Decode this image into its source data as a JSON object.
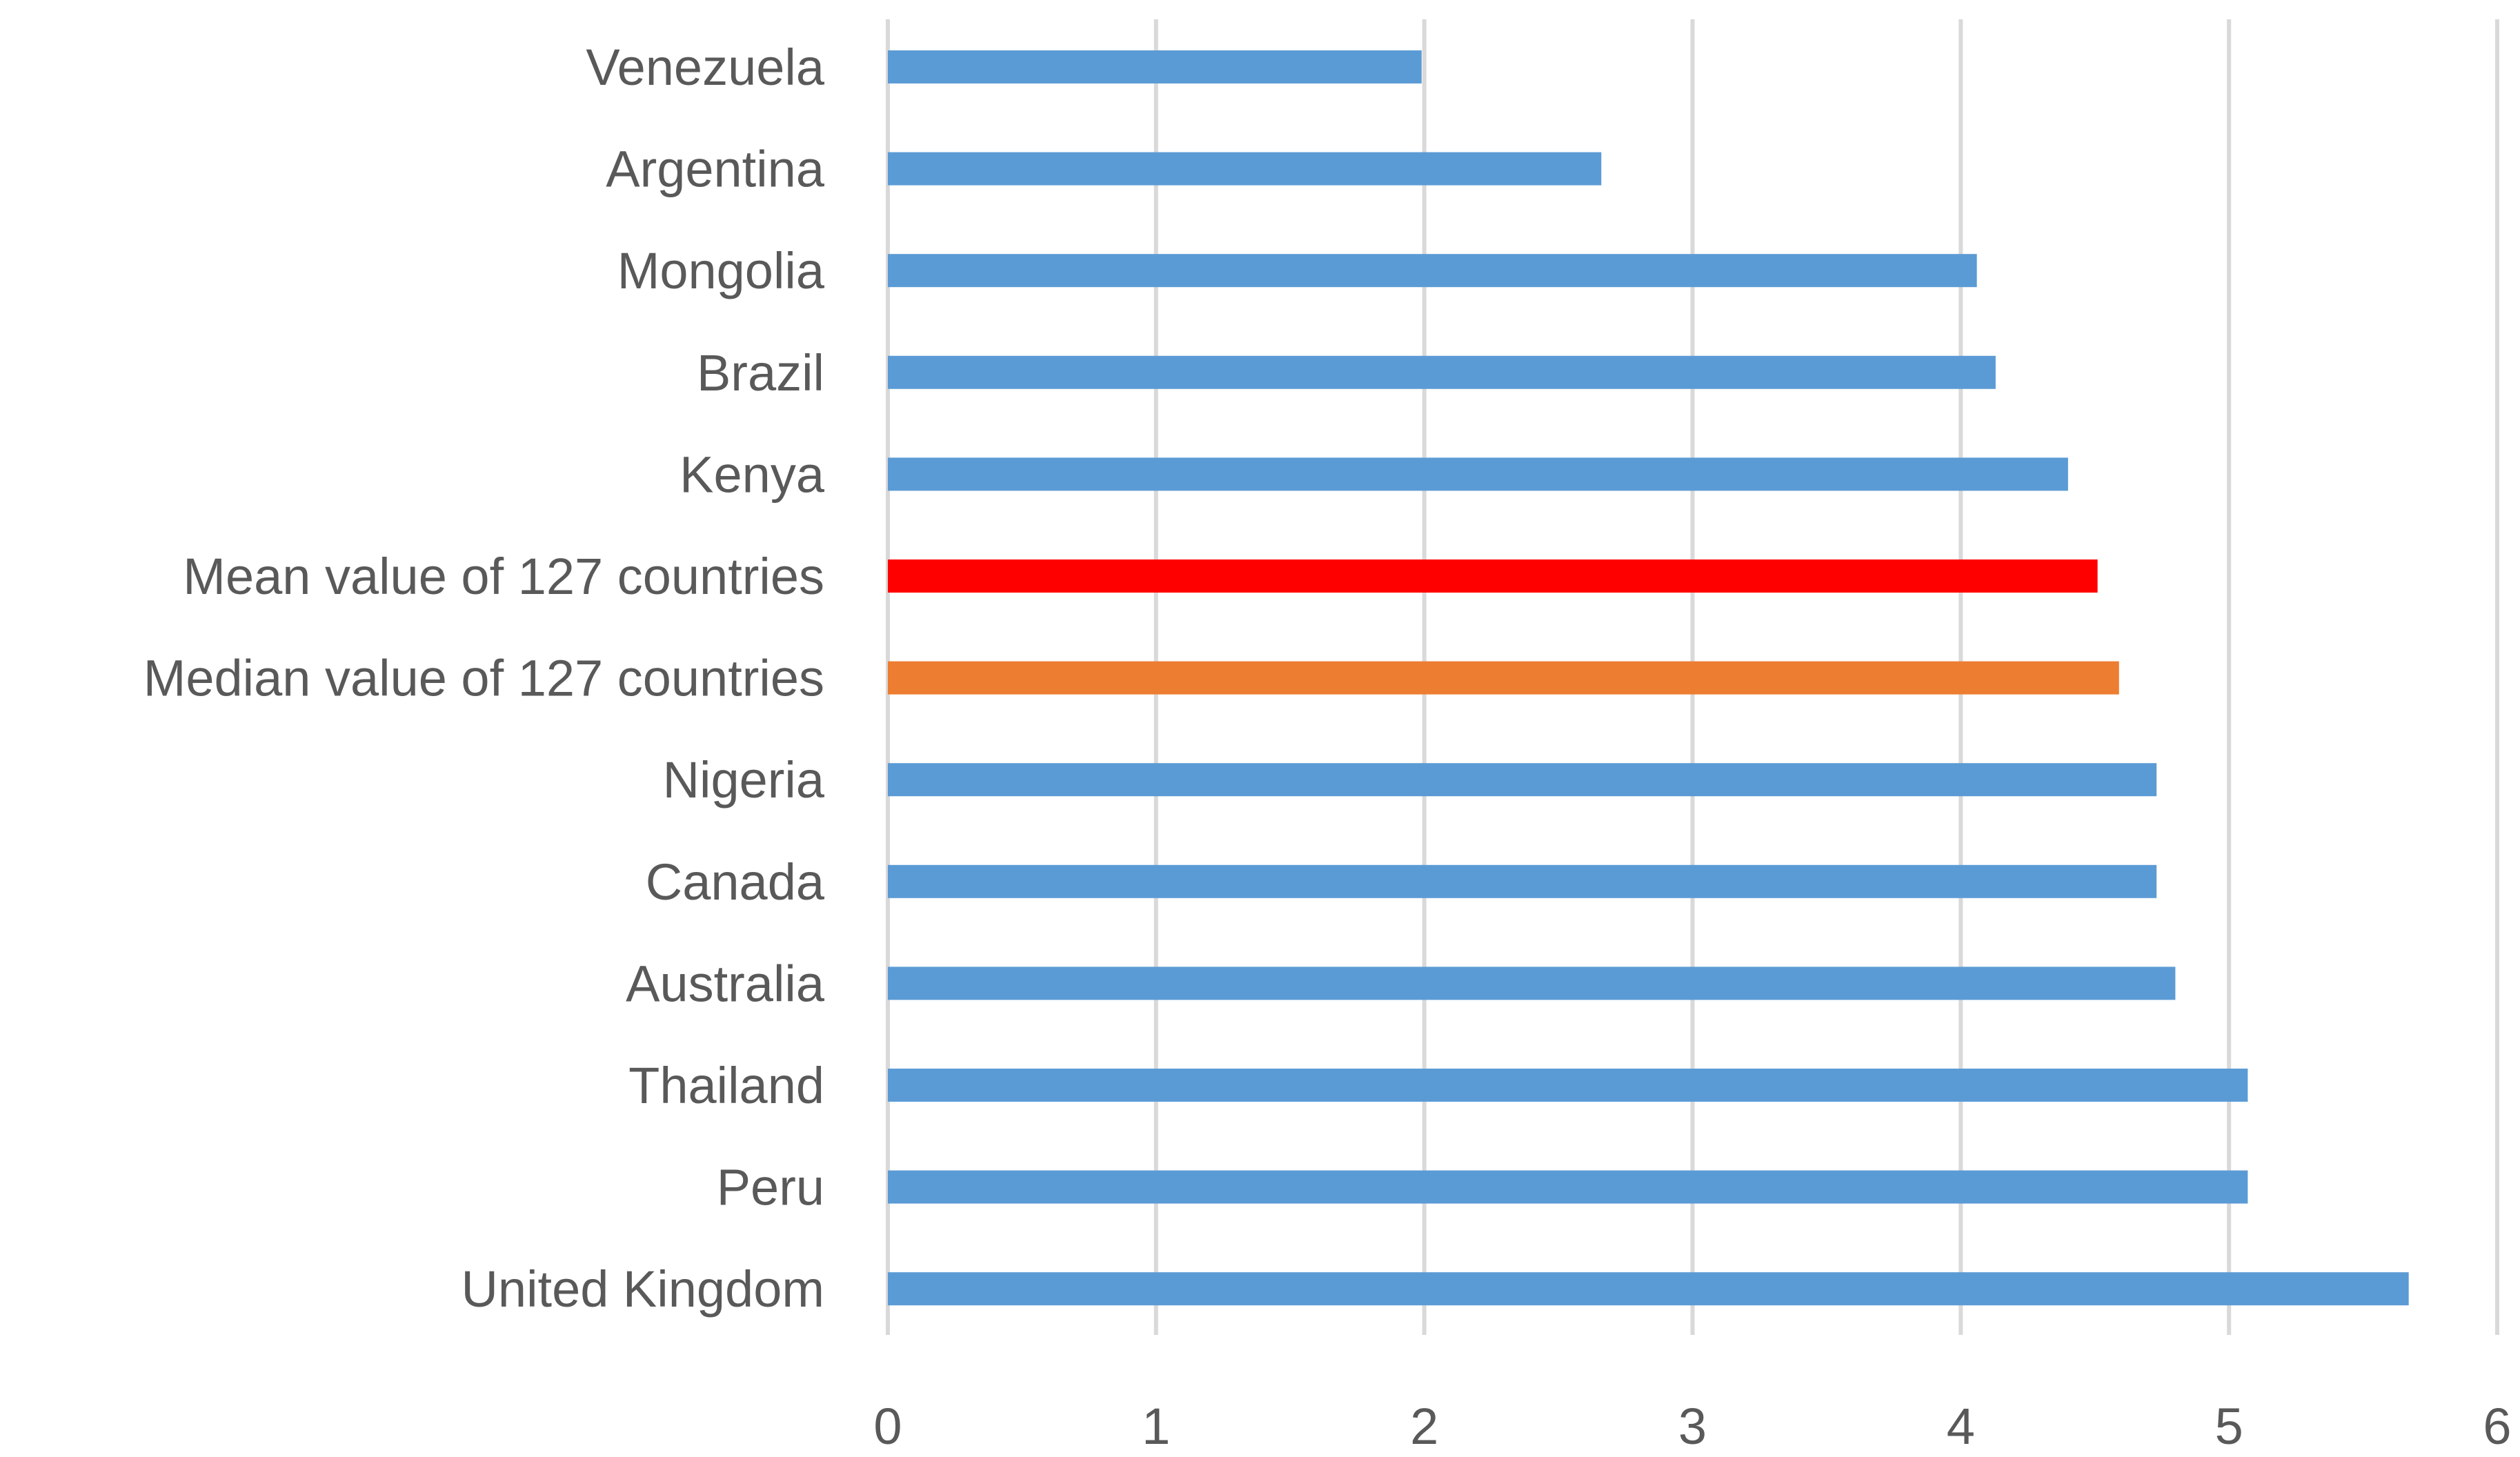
{
  "chart_data": {
    "type": "bar",
    "orientation": "horizontal",
    "categories": [
      "Venezuela",
      "Argentina",
      "Mongolia",
      "Brazil",
      "Kenya",
      "Mean value of 127 countries",
      "Median value of 127 countries",
      "Nigeria",
      "Canada",
      "Australia",
      "Thailand",
      "Peru",
      "United Kingdom"
    ],
    "values": [
      1.99,
      2.66,
      4.06,
      4.13,
      4.4,
      4.51,
      4.59,
      4.73,
      4.73,
      4.8,
      5.07,
      5.07,
      5.67
    ],
    "colors": [
      "#5b9bd5",
      "#5b9bd5",
      "#5b9bd5",
      "#5b9bd5",
      "#5b9bd5",
      "#ff0000",
      "#ed7d31",
      "#5b9bd5",
      "#5b9bd5",
      "#5b9bd5",
      "#5b9bd5",
      "#5b9bd5",
      "#5b9bd5"
    ],
    "xlim": [
      0,
      6
    ],
    "xticks": [
      "0",
      "1",
      "2",
      "3",
      "4",
      "5",
      "6"
    ],
    "grid": true,
    "gridline_color": "#d9d9d9",
    "label_color": "#595959"
  }
}
